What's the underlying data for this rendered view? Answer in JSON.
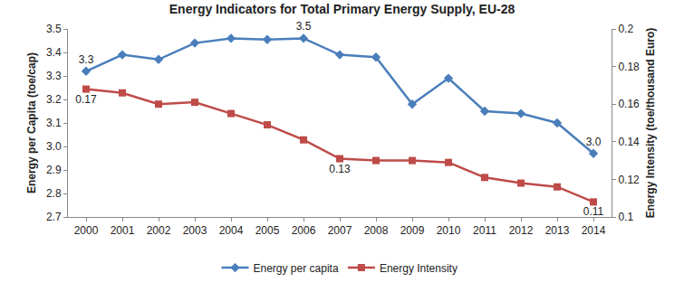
{
  "chart_data": {
    "type": "line",
    "title": "Energy Indicators for Total Primary Energy Supply, EU-28",
    "categories": [
      "2000",
      "2001",
      "2002",
      "2003",
      "2004",
      "2005",
      "2006",
      "2007",
      "2008",
      "2009",
      "2010",
      "2011",
      "2012",
      "2013",
      "2014"
    ],
    "y_label": "Energy per Capita (toe/cap)",
    "y2_label": "Energy Intensity (toe/thousand Euro)",
    "ylim": [
      2.7,
      3.5
    ],
    "yticks": [
      2.7,
      2.8,
      2.9,
      {
        "value": 3,
        "label": "3.0"
      },
      3.1,
      3.2,
      3.3,
      3.4,
      3.5
    ],
    "y2lim": [
      0.1,
      0.2
    ],
    "y2ticks": [
      0.1,
      0.12,
      0.14,
      0.16,
      0.18,
      0.2
    ],
    "grid": false,
    "legend": "bottom",
    "data_labels": true,
    "series": [
      {
        "name": "Energy per capita",
        "color": "#4a7ebb",
        "marker": "diamond",
        "axis": "y",
        "values": [
          3.32,
          3.39,
          3.37,
          3.44,
          3.46,
          3.455,
          3.46,
          3.39,
          3.38,
          3.18,
          3.29,
          3.15,
          3.14,
          3.1,
          2.97
        ],
        "value_labels": [
          "3.3",
          null,
          null,
          null,
          null,
          null,
          "3.5",
          null,
          null,
          null,
          null,
          null,
          null,
          null,
          "3.0"
        ]
      },
      {
        "name": "Energy Intensity",
        "color": "#be4b48",
        "marker": "square",
        "axis": "y2",
        "values": [
          0.168,
          0.166,
          0.16,
          0.161,
          0.155,
          0.149,
          0.141,
          0.131,
          0.13,
          0.13,
          0.129,
          0.121,
          0.118,
          0.116,
          0.108
        ],
        "value_labels": [
          "0.17",
          null,
          null,
          null,
          null,
          null,
          null,
          "0.13",
          null,
          null,
          null,
          null,
          null,
          null,
          "0.11"
        ]
      }
    ]
  }
}
